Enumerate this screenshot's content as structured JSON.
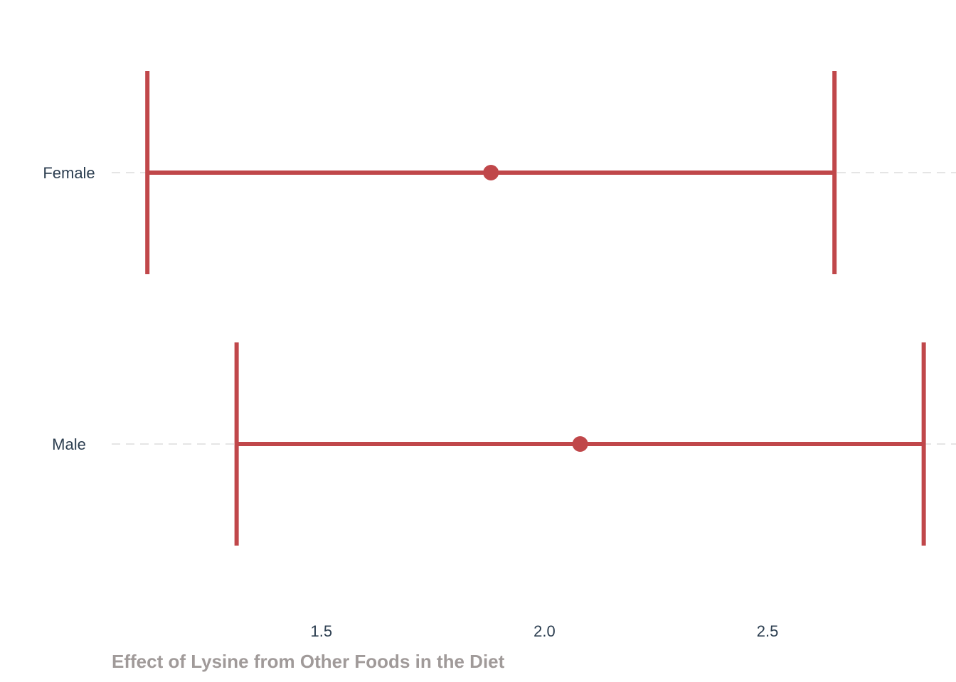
{
  "chart_data": {
    "type": "errorbar",
    "xlabel": "Effect of Lysine from Other Foods in the Diet",
    "ylabel": "",
    "title": "",
    "xlim": [
      1.03,
      2.9
    ],
    "x_ticks": [
      1.5,
      2.0,
      2.5
    ],
    "x_tick_labels": [
      "1.5",
      "2.0",
      "2.5"
    ],
    "categories": [
      "Female",
      "Male"
    ],
    "points": [
      {
        "category": "Female",
        "estimate": 1.88,
        "lower": 1.11,
        "upper": 2.65
      },
      {
        "category": "Male",
        "estimate": 2.08,
        "lower": 1.31,
        "upper": 2.85
      }
    ],
    "grid": {
      "horizontal": "dashed",
      "vertical": false
    },
    "colors": {
      "series": "#c0474a",
      "tick_text": "#2c3e50",
      "axis_title": "#a09a99",
      "grid": "#e5e5e5"
    }
  }
}
